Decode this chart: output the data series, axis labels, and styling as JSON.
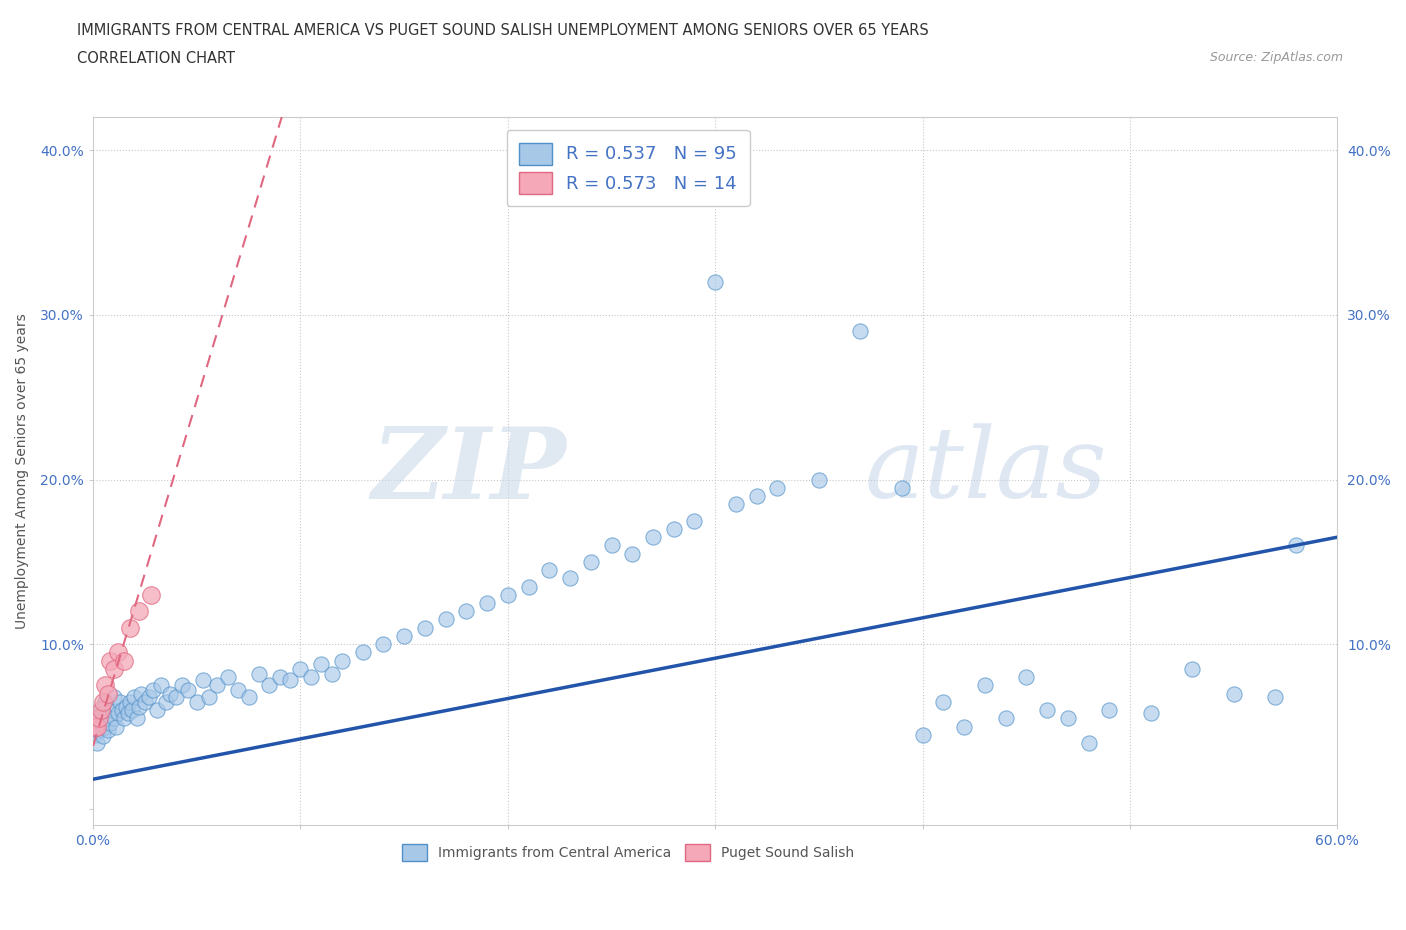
{
  "title_line1": "IMMIGRANTS FROM CENTRAL AMERICA VS PUGET SOUND SALISH UNEMPLOYMENT AMONG SENIORS OVER 65 YEARS",
  "title_line2": "CORRELATION CHART",
  "source_text": "Source: ZipAtlas.com",
  "ylabel": "Unemployment Among Seniors over 65 years",
  "xlim": [
    0.0,
    0.6
  ],
  "ylim": [
    -0.01,
    0.42
  ],
  "blue_color": "#a8c8e8",
  "pink_color": "#f4a8b8",
  "blue_edge_color": "#5090c8",
  "pink_edge_color": "#e06880",
  "blue_line_color": "#2255aa",
  "pink_line_color": "#e06880",
  "grid_color": "#c8c8c8",
  "R_blue": 0.537,
  "N_blue": 95,
  "R_pink": 0.573,
  "N_pink": 14,
  "watermark_zip": "ZIP",
  "watermark_atlas": "atlas",
  "blue_slope": 0.245,
  "blue_intercept": 0.018,
  "pink_slope": 4.2,
  "pink_intercept": 0.038,
  "blue_scatter_x": [
    0.001,
    0.002,
    0.002,
    0.003,
    0.003,
    0.004,
    0.004,
    0.005,
    0.005,
    0.006,
    0.006,
    0.007,
    0.007,
    0.008,
    0.009,
    0.01,
    0.01,
    0.011,
    0.012,
    0.013,
    0.014,
    0.015,
    0.016,
    0.017,
    0.018,
    0.019,
    0.02,
    0.021,
    0.022,
    0.023,
    0.025,
    0.027,
    0.029,
    0.031,
    0.033,
    0.035,
    0.037,
    0.04,
    0.043,
    0.046,
    0.05,
    0.053,
    0.056,
    0.06,
    0.065,
    0.07,
    0.075,
    0.08,
    0.085,
    0.09,
    0.095,
    0.1,
    0.105,
    0.11,
    0.115,
    0.12,
    0.13,
    0.14,
    0.15,
    0.16,
    0.17,
    0.18,
    0.19,
    0.2,
    0.21,
    0.22,
    0.23,
    0.24,
    0.25,
    0.26,
    0.27,
    0.28,
    0.29,
    0.3,
    0.31,
    0.32,
    0.33,
    0.35,
    0.37,
    0.39,
    0.41,
    0.43,
    0.45,
    0.47,
    0.49,
    0.51,
    0.53,
    0.55,
    0.57,
    0.58,
    0.4,
    0.42,
    0.44,
    0.46,
    0.48
  ],
  "blue_scatter_y": [
    0.045,
    0.05,
    0.04,
    0.055,
    0.048,
    0.052,
    0.06,
    0.044,
    0.058,
    0.05,
    0.065,
    0.048,
    0.055,
    0.052,
    0.06,
    0.055,
    0.068,
    0.05,
    0.058,
    0.065,
    0.06,
    0.055,
    0.062,
    0.058,
    0.065,
    0.06,
    0.068,
    0.055,
    0.062,
    0.07,
    0.065,
    0.068,
    0.072,
    0.06,
    0.075,
    0.065,
    0.07,
    0.068,
    0.075,
    0.072,
    0.065,
    0.078,
    0.068,
    0.075,
    0.08,
    0.072,
    0.068,
    0.082,
    0.075,
    0.08,
    0.078,
    0.085,
    0.08,
    0.088,
    0.082,
    0.09,
    0.095,
    0.1,
    0.105,
    0.11,
    0.115,
    0.12,
    0.125,
    0.13,
    0.135,
    0.145,
    0.14,
    0.15,
    0.16,
    0.155,
    0.165,
    0.17,
    0.175,
    0.32,
    0.185,
    0.19,
    0.195,
    0.2,
    0.29,
    0.195,
    0.065,
    0.075,
    0.08,
    0.055,
    0.06,
    0.058,
    0.085,
    0.07,
    0.068,
    0.16,
    0.045,
    0.05,
    0.055,
    0.06,
    0.04
  ],
  "pink_scatter_x": [
    0.001,
    0.002,
    0.003,
    0.004,
    0.005,
    0.006,
    0.007,
    0.008,
    0.01,
    0.012,
    0.015,
    0.018,
    0.022,
    0.028
  ],
  "pink_scatter_y": [
    0.05,
    0.05,
    0.055,
    0.06,
    0.065,
    0.075,
    0.07,
    0.09,
    0.085,
    0.095,
    0.09,
    0.11,
    0.12,
    0.13
  ]
}
